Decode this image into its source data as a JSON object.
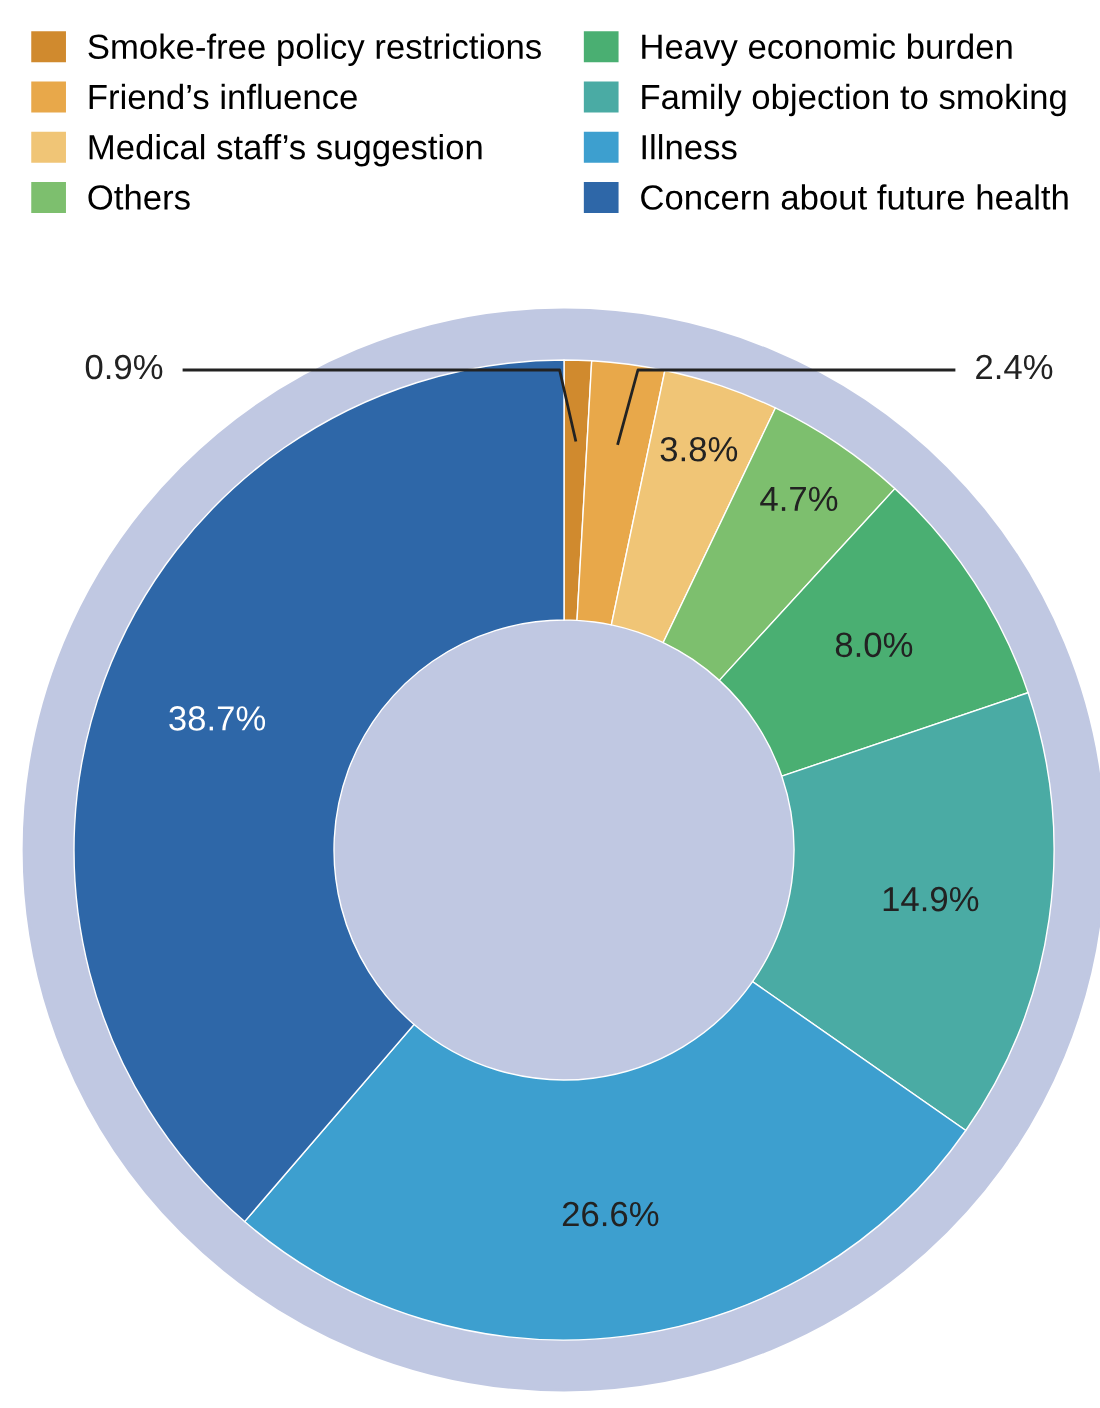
{
  "chart_data": {
    "type": "donut",
    "categories": [
      "Smoke-free policy restrictions",
      "Friend’s influence",
      "Medical staff’s suggestion",
      "Others",
      "Heavy economic burden",
      "Family objection to smoking",
      "Illness",
      "Concern about future health"
    ],
    "values": [
      0.9,
      2.4,
      3.8,
      4.7,
      8.0,
      14.9,
      26.6,
      38.7
    ],
    "colors": [
      "#d08a2e",
      "#e8a84a",
      "#f0c576",
      "#7dbf6e",
      "#4aaf72",
      "#4aaba4",
      "#3d9fcf",
      "#2e67a8"
    ],
    "value_labels": [
      "0.9%",
      "2.4%",
      "3.8%",
      "4.7%",
      "8.0%",
      "14.9%",
      "26.6%",
      "38.7%"
    ],
    "legend": "top"
  }
}
